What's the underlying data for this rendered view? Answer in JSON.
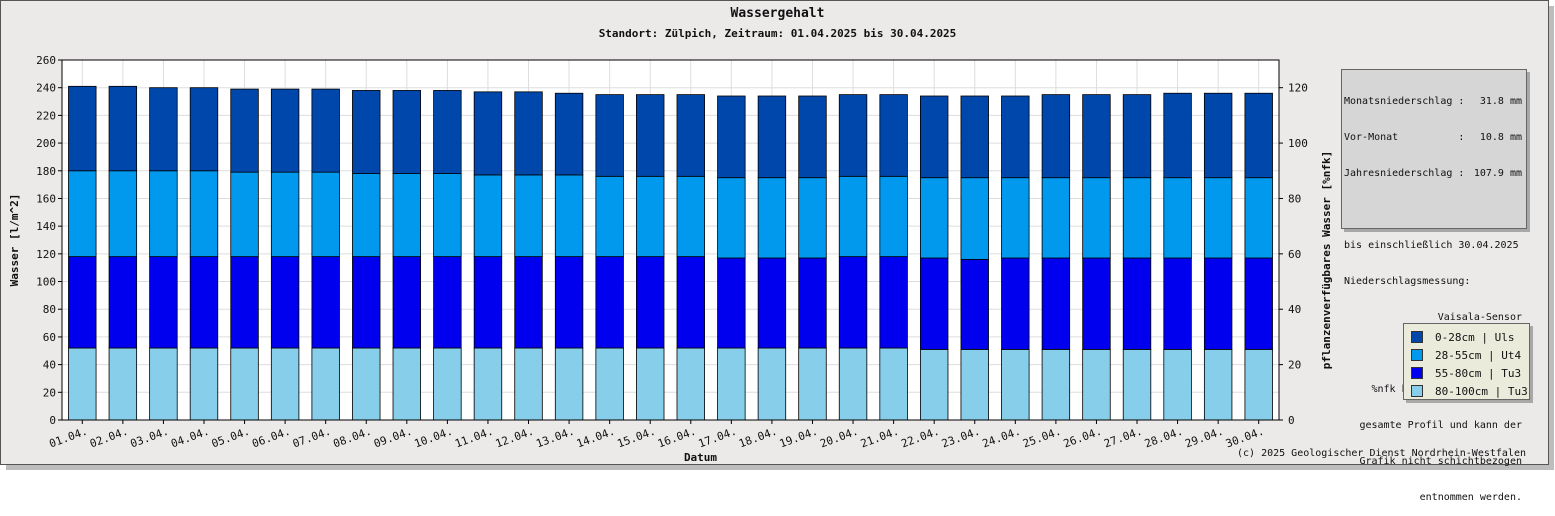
{
  "title": "Wassergehalt",
  "subtitle": "Standort: Zülpich, Zeitraum: 01.04.2025 bis 30.04.2025",
  "copyright": "(c) 2025 Geologischer Dienst Nordrhein-Westfalen",
  "info": {
    "monat_label": "Monatsniederschlag :",
    "monat_value": "31.8 mm",
    "vormonat_label": "Vor-Monat          :",
    "vormonat_value": "10.8 mm",
    "jahr_label": "Jahresniederschlag :",
    "jahr_value": "107.9 mm",
    "bis": "bis einschließlich 30.04.2025",
    "messung": "Niederschlagsmessung:",
    "sensor": "Vaisala-Sensor",
    "note1": "%nfk bezieht sich auf das",
    "note2": "gesamte Profil und kann der",
    "note3": "Grafik nicht schichtbezogen",
    "note4": "entnommen werden."
  },
  "chart_data": {
    "type": "bar",
    "stacked": true,
    "xlabel": "Datum",
    "ylabel": "Wasser [l/m^2]",
    "y2label": "pflanzenverfügbares Wasser [%nfk]",
    "ylim": [
      0,
      260
    ],
    "yticks": [
      0,
      20,
      40,
      60,
      80,
      100,
      120,
      140,
      160,
      180,
      200,
      220,
      240,
      260
    ],
    "y2lim": [
      0,
      130
    ],
    "y2ticks": [
      0,
      20,
      40,
      60,
      80,
      100,
      120
    ],
    "grid": true,
    "legend_position": "right",
    "categories": [
      "01.04.",
      "02.04.",
      "03.04.",
      "04.04.",
      "05.04.",
      "06.04.",
      "07.04.",
      "08.04.",
      "09.04.",
      "10.04.",
      "11.04.",
      "12.04.",
      "13.04.",
      "14.04.",
      "15.04.",
      "16.04.",
      "17.04.",
      "18.04.",
      "19.04.",
      "20.04.",
      "21.04.",
      "22.04.",
      "23.04.",
      "24.04.",
      "25.04.",
      "26.04.",
      "27.04.",
      "28.04.",
      "29.04.",
      "30.04."
    ],
    "series": [
      {
        "name": "80-100cm | Tu3",
        "color": "#87ceeb",
        "values": [
          52,
          52,
          52,
          52,
          52,
          52,
          52,
          52,
          52,
          52,
          52,
          52,
          52,
          52,
          52,
          52,
          52,
          52,
          52,
          52,
          52,
          51,
          51,
          51,
          51,
          51,
          51,
          51,
          51,
          51
        ]
      },
      {
        "name": "55-80cm | Tu3",
        "color": "#0000ee",
        "values": [
          66,
          66,
          66,
          66,
          66,
          66,
          66,
          66,
          66,
          66,
          66,
          66,
          66,
          66,
          66,
          66,
          65,
          65,
          65,
          66,
          66,
          66,
          65,
          66,
          66,
          66,
          66,
          66,
          66,
          66
        ]
      },
      {
        "name": "28-55cm | Ut4",
        "color": "#0099ee",
        "values": [
          62,
          62,
          62,
          62,
          61,
          61,
          61,
          60,
          60,
          60,
          59,
          59,
          59,
          58,
          58,
          58,
          58,
          58,
          58,
          58,
          58,
          58,
          59,
          58,
          58,
          58,
          58,
          58,
          58,
          58
        ]
      },
      {
        "name": "0-28cm | Uls",
        "color": "#0047ab",
        "values": [
          61,
          61,
          60,
          60,
          60,
          60,
          60,
          60,
          60,
          60,
          60,
          60,
          59,
          59,
          59,
          59,
          59,
          59,
          59,
          59,
          59,
          59,
          59,
          59,
          60,
          60,
          60,
          61,
          61,
          61
        ]
      }
    ]
  }
}
